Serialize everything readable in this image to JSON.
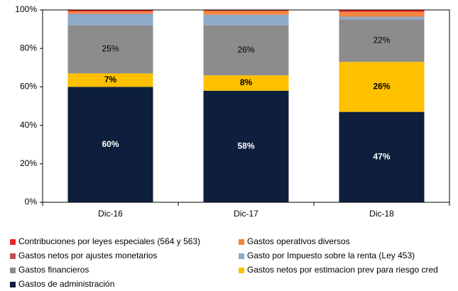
{
  "chart_data": {
    "type": "stacked_bar",
    "categories": [
      "Dic-16",
      "Dic-17",
      "Dic-18"
    ],
    "series": [
      {
        "name": "Contribuciones por leyes especiales (564 y 563)",
        "color": "#e8262a",
        "values": [
          0.8,
          0.5,
          1
        ]
      },
      {
        "name": "Gastos operativos diversos",
        "color": "#f4853e",
        "values": [
          1,
          2,
          2.5
        ]
      },
      {
        "name": "Gastos netos por ajustes monetarios",
        "color": "#c0504d",
        "values": [
          0.2,
          0,
          0
        ]
      },
      {
        "name": "Gasto por Impuesto sobre la renta (Ley 453)",
        "color": "#8eaac9",
        "values": [
          6,
          5.5,
          1.5
        ]
      },
      {
        "name": "Gastos financieros",
        "color": "#8c8c8c",
        "values": [
          25,
          26,
          22
        ],
        "value_labels": [
          "25%",
          "26%",
          "22%"
        ]
      },
      {
        "name": "Gastos netos por estimacion prev para riesgo cred",
        "color": "#ffc000",
        "values": [
          7,
          8,
          26
        ],
        "value_labels": [
          "7%",
          "8%",
          "26%"
        ]
      },
      {
        "name": "Gastos de administración",
        "color": "#0d1f3c",
        "values": [
          60,
          58,
          47
        ],
        "value_labels": [
          "60%",
          "58%",
          "47%"
        ]
      }
    ],
    "ylim": [
      0,
      100
    ],
    "yticks": [
      {
        "value": 0,
        "label": "0%"
      },
      {
        "value": 20,
        "label": "20%"
      },
      {
        "value": 40,
        "label": "40%"
      },
      {
        "value": 60,
        "label": "60%"
      },
      {
        "value": 80,
        "label": "80%"
      },
      {
        "value": 100,
        "label": "100%"
      }
    ],
    "legend": "bottom"
  }
}
